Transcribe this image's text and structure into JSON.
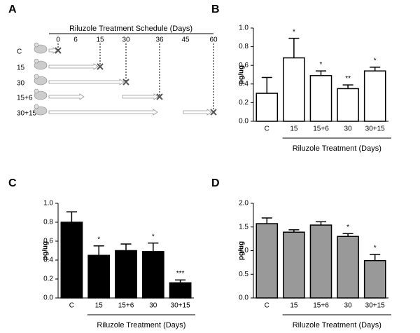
{
  "chart_data": [
    {
      "type": "schedule",
      "panel": "A",
      "title": "Riluzole Treatment Schedule (Days)",
      "ticks": [
        0,
        6,
        15,
        30,
        36,
        45,
        60
      ],
      "rows": [
        {
          "label": "C",
          "end": 0
        },
        {
          "label": "15",
          "end": 15
        },
        {
          "label": "30",
          "end": 30
        },
        {
          "label": "15+6",
          "end": 36
        },
        {
          "label": "30+15",
          "end": 60
        }
      ]
    },
    {
      "type": "bar",
      "panel": "B",
      "ylabel": "pg/ug",
      "x_group_label": "Riluzole Treatment (Days)",
      "categories": [
        "C",
        "15",
        "15+6",
        "30",
        "30+15"
      ],
      "values": [
        0.3,
        0.68,
        0.49,
        0.35,
        0.54
      ],
      "errors": [
        0.17,
        0.21,
        0.05,
        0.04,
        0.04
      ],
      "significance": [
        null,
        "*",
        "*",
        "**",
        "*"
      ],
      "color": "#ffffff",
      "ylim": [
        0,
        1.0
      ],
      "yticks": [
        {
          "value": 0,
          "label": "0.0"
        },
        0.2,
        0.4,
        0.6,
        0.8,
        {
          "value": 1.0,
          "label": "1.0"
        }
      ]
    },
    {
      "type": "bar",
      "panel": "C",
      "ylabel": "pg/ug",
      "x_group_label": "Riluzole Treatment (Days)",
      "categories": [
        "C",
        "15",
        "15+6",
        "30",
        "30+15"
      ],
      "values": [
        0.8,
        0.45,
        0.5,
        0.49,
        0.16
      ],
      "errors": [
        0.11,
        0.1,
        0.07,
        0.09,
        0.03
      ],
      "significance": [
        null,
        "*",
        null,
        "*",
        "***"
      ],
      "color": "#000000",
      "ylim": [
        0,
        1.0
      ],
      "yticks": [
        {
          "value": 0,
          "label": "0.0"
        },
        0.2,
        0.4,
        0.6,
        0.8,
        {
          "value": 1.0,
          "label": "1.0"
        }
      ]
    },
    {
      "type": "bar",
      "panel": "D",
      "ylabel": "pg/ug",
      "x_group_label": "Riluzole Treatment (Days)",
      "categories": [
        "C",
        "15",
        "15+6",
        "30",
        "30+15"
      ],
      "values": [
        1.57,
        1.39,
        1.54,
        1.3,
        0.79
      ],
      "errors": [
        0.12,
        0.05,
        0.07,
        0.06,
        0.13
      ],
      "significance": [
        null,
        null,
        null,
        "*",
        "*"
      ],
      "color": "#999999",
      "ylim": [
        0,
        2.0
      ],
      "yticks": [
        {
          "value": 0,
          "label": "0.0"
        },
        0.5,
        {
          "value": 1.0,
          "label": "1.0"
        },
        1.5,
        {
          "value": 2.0,
          "label": "2.0"
        }
      ]
    }
  ]
}
